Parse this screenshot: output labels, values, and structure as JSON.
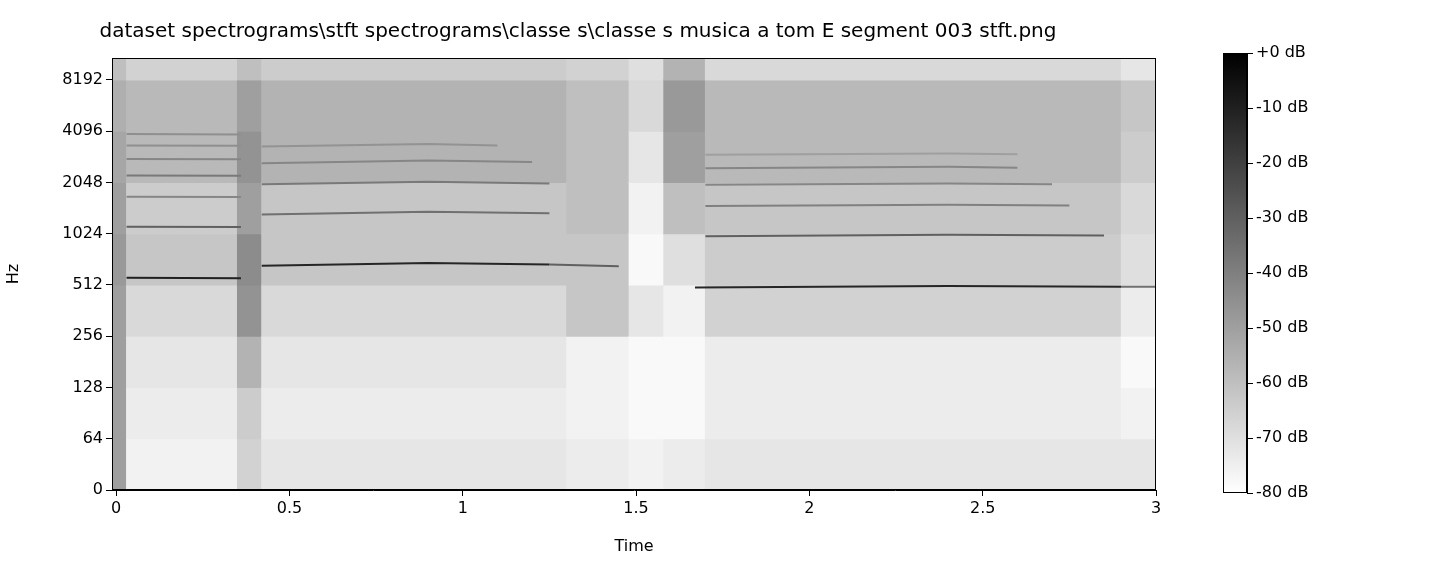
{
  "chart_data": {
    "type": "spectrogram",
    "title": "dataset spectrograms\\stft spectrograms\\classe s\\classe s musica a tom E segment 003 stft.png",
    "x_label": "Time",
    "y_label": "Hz",
    "log": "y",
    "grid": false,
    "xlim": [
      -0.012,
      3.0
    ],
    "xticks": [
      0,
      0.5,
      1,
      1.5,
      2,
      2.5,
      3
    ],
    "ylim": [
      0,
      11025
    ],
    "yticks": [
      0,
      64,
      128,
      256,
      512,
      1024,
      2048,
      4096,
      8192
    ],
    "colorbar_range": [
      -80,
      0
    ],
    "colorbar_ticks": [
      {
        "value": 0,
        "label": "+0 dB"
      },
      {
        "value": -10,
        "label": "-10 dB"
      },
      {
        "value": -20,
        "label": "-20 dB"
      },
      {
        "value": -30,
        "label": "-30 dB"
      },
      {
        "value": -40,
        "label": "-40 dB"
      },
      {
        "value": -50,
        "label": "-50 dB"
      },
      {
        "value": -60,
        "label": "-60 dB"
      },
      {
        "value": -70,
        "label": "-70 dB"
      },
      {
        "value": -80,
        "label": "-80 dB"
      }
    ],
    "cells": {
      "time_edges": [
        -0.012,
        0.03,
        0.35,
        0.42,
        1.3,
        1.48,
        1.58,
        1.7,
        2.9,
        3.0
      ],
      "freq_edges": [
        0,
        64,
        128,
        256,
        512,
        1024,
        2048,
        4096,
        8192,
        11025
      ],
      "levels_db": [
        [
          -50,
          -50,
          -50,
          -50,
          -48,
          -50,
          -52,
          -55,
          -60
        ],
        [
          -76,
          -74,
          -72,
          -68,
          -62,
          -64,
          -58,
          -58,
          -66
        ],
        [
          -66,
          -64,
          -56,
          -46,
          -44,
          -50,
          -46,
          -50,
          -60
        ],
        [
          -72,
          -74,
          -72,
          -68,
          -62,
          -62,
          -56,
          -56,
          -64
        ],
        [
          -74,
          -76,
          -76,
          -62,
          -62,
          -60,
          -60,
          -60,
          -66
        ],
        [
          -76,
          -78,
          -78,
          -72,
          -78,
          -76,
          -72,
          -68,
          -70
        ],
        [
          -74,
          -78,
          -78,
          -76,
          -70,
          -60,
          -50,
          -48,
          -56
        ],
        [
          -72,
          -74,
          -74,
          -66,
          -64,
          -62,
          -58,
          -58,
          -68
        ],
        [
          -72,
          -76,
          -78,
          -74,
          -70,
          -68,
          -64,
          -62,
          -72
        ]
      ]
    },
    "tracks": [
      {
        "time": [
          0.03,
          0.36
        ],
        "freq": [
          565,
          560
        ],
        "level": -10
      },
      {
        "time": [
          0.03,
          0.36
        ],
        "freq": [
          1125,
          1120
        ],
        "level": -30
      },
      {
        "time": [
          0.03,
          0.36
        ],
        "freq": [
          1690,
          1680
        ],
        "level": -42
      },
      {
        "time": [
          0.03,
          0.36
        ],
        "freq": [
          2250,
          2240
        ],
        "level": -38
      },
      {
        "time": [
          0.03,
          0.36
        ],
        "freq": [
          2810,
          2800
        ],
        "level": -42
      },
      {
        "time": [
          0.03,
          0.36
        ],
        "freq": [
          3380,
          3360
        ],
        "level": -45
      },
      {
        "time": [
          0.03,
          0.36
        ],
        "freq": [
          3950,
          3920
        ],
        "level": -45
      },
      {
        "time": [
          0.42,
          0.9,
          1.25
        ],
        "freq": [
          665,
          690,
          675
        ],
        "level": -12
      },
      {
        "time": [
          1.25,
          1.45
        ],
        "freq": [
          675,
          660
        ],
        "level": -30
      },
      {
        "time": [
          0.42,
          0.9,
          1.25
        ],
        "freq": [
          1330,
          1380,
          1350
        ],
        "level": -35
      },
      {
        "time": [
          0.42,
          0.9,
          1.25
        ],
        "freq": [
          2000,
          2070,
          2020
        ],
        "level": -38
      },
      {
        "time": [
          0.42,
          0.9,
          1.2
        ],
        "freq": [
          2660,
          2760,
          2700
        ],
        "level": -42
      },
      {
        "time": [
          0.42,
          0.9,
          1.1
        ],
        "freq": [
          3330,
          3450,
          3380
        ],
        "level": -46
      },
      {
        "time": [
          1.67,
          2.4,
          2.9
        ],
        "freq": [
          495,
          505,
          500
        ],
        "level": -12
      },
      {
        "time": [
          2.9,
          3.0
        ],
        "freq": [
          500,
          500
        ],
        "level": -35
      },
      {
        "time": [
          1.7,
          2.4,
          2.85
        ],
        "freq": [
          990,
          1010,
          1000
        ],
        "level": -30
      },
      {
        "time": [
          1.7,
          2.4,
          2.75
        ],
        "freq": [
          1490,
          1515,
          1500
        ],
        "level": -40
      },
      {
        "time": [
          1.7,
          2.4,
          2.7
        ],
        "freq": [
          1985,
          2020,
          2000
        ],
        "level": -42
      },
      {
        "time": [
          1.7,
          2.4,
          2.6
        ],
        "freq": [
          2480,
          2530,
          2500
        ],
        "level": -42
      },
      {
        "time": [
          1.7,
          2.4,
          2.6
        ],
        "freq": [
          2980,
          3030,
          3000
        ],
        "level": -50
      }
    ]
  }
}
